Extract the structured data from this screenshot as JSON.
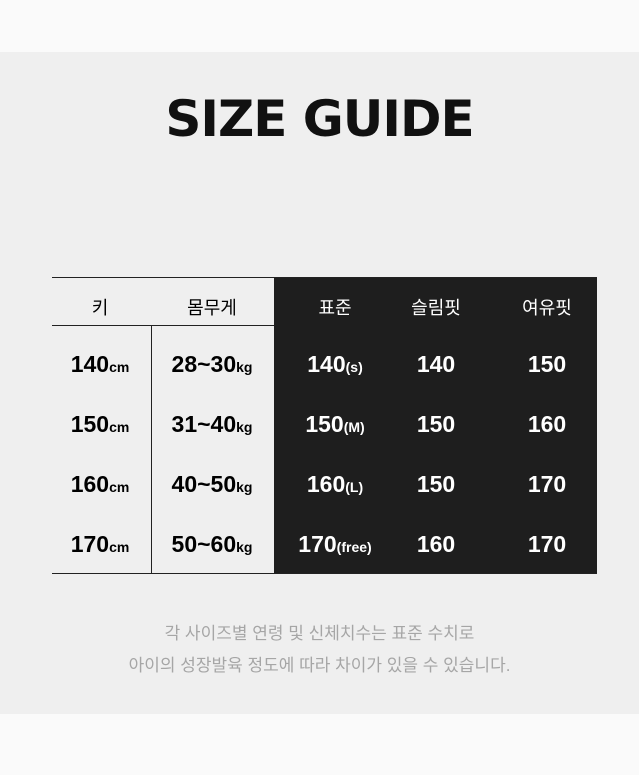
{
  "title": "SIZE GUIDE",
  "headers": [
    "키",
    "몸무게",
    "표준",
    "슬림핏",
    "여유핏"
  ],
  "rows": [
    {
      "height": "140",
      "height_unit": "cm",
      "weight": "28~30",
      "weight_unit": "kg",
      "standard": "140",
      "standard_size": "(s)",
      "slim": "140",
      "loose": "150"
    },
    {
      "height": "150",
      "height_unit": "cm",
      "weight": "31~40",
      "weight_unit": "kg",
      "standard": "150",
      "standard_size": "(M)",
      "slim": "150",
      "loose": "160"
    },
    {
      "height": "160",
      "height_unit": "cm",
      "weight": "40~50",
      "weight_unit": "kg",
      "standard": "160",
      "standard_size": "(L)",
      "slim": "150",
      "loose": "170"
    },
    {
      "height": "170",
      "height_unit": "cm",
      "weight": "50~60",
      "weight_unit": "kg",
      "standard": "170",
      "standard_size": "(free)",
      "slim": "160",
      "loose": "170"
    }
  ],
  "notes": [
    "각 사이즈별 연령 및 신체치수는 표준 수치로",
    "아이의 성장발육 정도에 따라 차이가 있을 수 있습니다."
  ]
}
